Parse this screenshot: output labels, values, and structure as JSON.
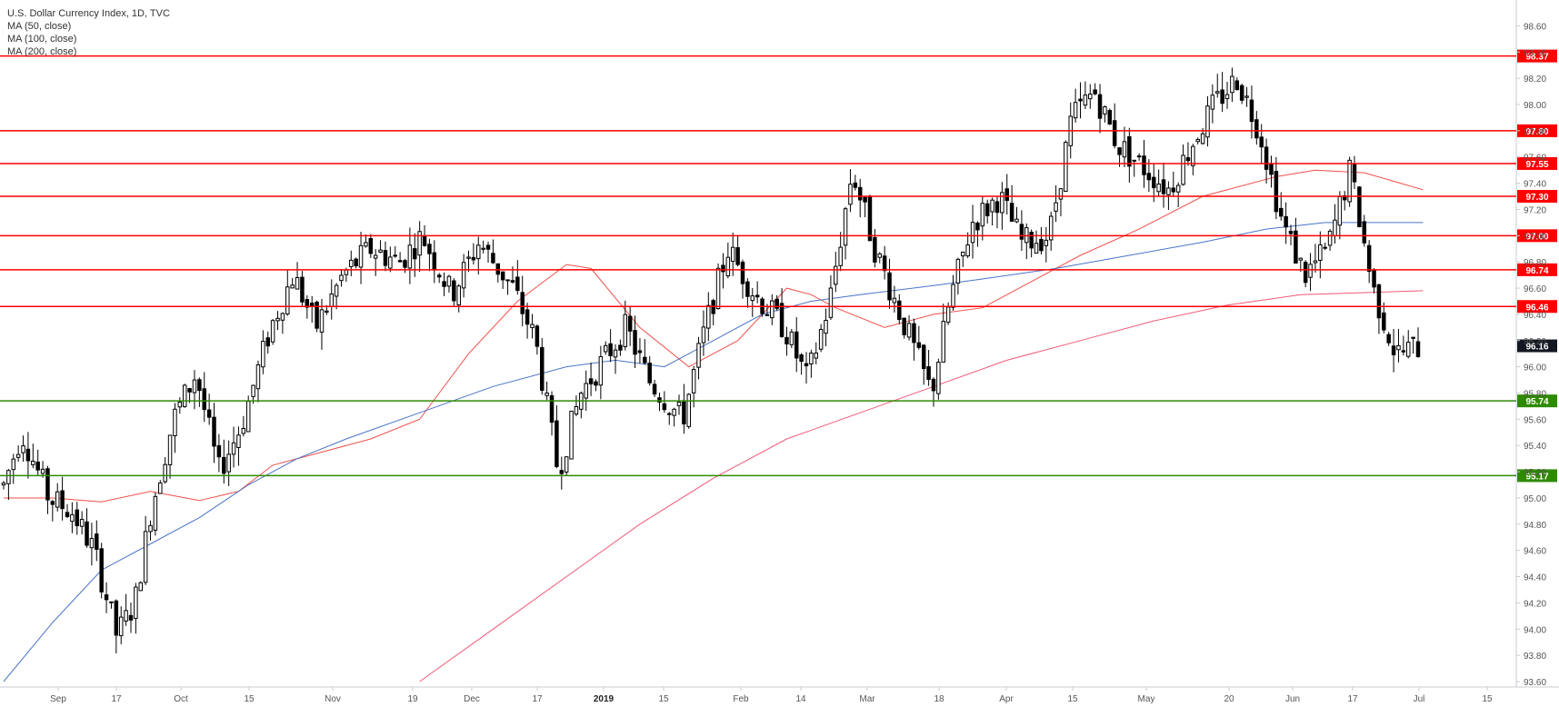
{
  "chart_data": {
    "type": "candlestick",
    "title": "U.S. Dollar Currency Index, 1D, TVC",
    "indicators": [
      "MA (50, close)",
      "MA (100, close)",
      "MA (200, close)"
    ],
    "y_range": [
      93.6,
      98.7
    ],
    "y_ticks": [
      "93.60",
      "93.80",
      "94.00",
      "94.20",
      "94.40",
      "94.60",
      "94.80",
      "95.00",
      "95.20",
      "95.40",
      "95.60",
      "95.80",
      "96.00",
      "96.20",
      "96.40",
      "96.60",
      "96.80",
      "97.00",
      "97.20",
      "97.40",
      "97.60",
      "97.80",
      "98.00",
      "98.20",
      "98.40",
      "98.60"
    ],
    "x_labels": [
      "Sep",
      "17",
      "Oct",
      "15",
      "Nov",
      "19",
      "Dec",
      "17",
      "2019",
      "15",
      "Feb",
      "14",
      "Mar",
      "18",
      "Apr",
      "15",
      "May",
      "20",
      "Jun",
      "17",
      "Jul",
      "15"
    ],
    "resistance_levels": [
      "98.37",
      "97.80",
      "97.55",
      "97.30",
      "97.00",
      "96.74",
      "96.46"
    ],
    "support_levels": [
      "95.74",
      "95.17"
    ],
    "last_price": "96.16",
    "colors": {
      "resistance": "#ff0000",
      "support": "#2e8b00",
      "ma50": "#f0504a",
      "ma100": "#4a74c9",
      "ma200": "#f15a78",
      "up_candle": "#ffffff",
      "down_candle": "#000000",
      "last_price_bg": "#131722"
    },
    "ma_notes": {
      "ma50": [
        [
          0,
          95.0
        ],
        [
          10,
          95.0
        ],
        [
          20,
          94.97
        ],
        [
          30,
          95.05
        ],
        [
          40,
          94.98
        ],
        [
          48,
          95.05
        ],
        [
          55,
          95.25
        ],
        [
          65,
          95.35
        ],
        [
          75,
          95.45
        ],
        [
          85,
          95.6
        ],
        [
          95,
          96.1
        ],
        [
          105,
          96.5
        ],
        [
          115,
          96.78
        ],
        [
          120,
          96.75
        ],
        [
          130,
          96.3
        ],
        [
          140,
          96.0
        ],
        [
          150,
          96.2
        ],
        [
          160,
          96.6
        ],
        [
          165,
          96.55
        ],
        [
          170,
          96.45
        ],
        [
          180,
          96.3
        ],
        [
          190,
          96.4
        ],
        [
          200,
          96.45
        ],
        [
          210,
          96.65
        ],
        [
          220,
          96.85
        ],
        [
          232,
          97.05
        ],
        [
          245,
          97.3
        ],
        [
          260,
          97.45
        ],
        [
          268,
          97.5
        ],
        [
          278,
          97.48
        ],
        [
          290,
          97.35
        ]
      ],
      "ma100": [
        [
          0,
          93.6
        ],
        [
          10,
          94.05
        ],
        [
          20,
          94.45
        ],
        [
          30,
          94.65
        ],
        [
          40,
          94.85
        ],
        [
          50,
          95.1
        ],
        [
          60,
          95.3
        ],
        [
          70,
          95.45
        ],
        [
          85,
          95.65
        ],
        [
          100,
          95.85
        ],
        [
          115,
          96.0
        ],
        [
          125,
          96.05
        ],
        [
          135,
          96.0
        ],
        [
          145,
          96.2
        ],
        [
          155,
          96.4
        ],
        [
          165,
          96.5
        ],
        [
          175,
          96.55
        ],
        [
          190,
          96.62
        ],
        [
          200,
          96.67
        ],
        [
          215,
          96.75
        ],
        [
          230,
          96.85
        ],
        [
          245,
          96.95
        ],
        [
          258,
          97.05
        ],
        [
          270,
          97.1
        ],
        [
          290,
          97.1
        ]
      ],
      "ma200": [
        [
          85,
          93.6
        ],
        [
          100,
          94.0
        ],
        [
          115,
          94.4
        ],
        [
          130,
          94.8
        ],
        [
          145,
          95.15
        ],
        [
          160,
          95.45
        ],
        [
          175,
          95.65
        ],
        [
          190,
          95.85
        ],
        [
          205,
          96.05
        ],
        [
          220,
          96.2
        ],
        [
          235,
          96.35
        ],
        [
          250,
          96.47
        ],
        [
          265,
          96.55
        ],
        [
          290,
          96.58
        ]
      ]
    },
    "candle_count": 290
  }
}
